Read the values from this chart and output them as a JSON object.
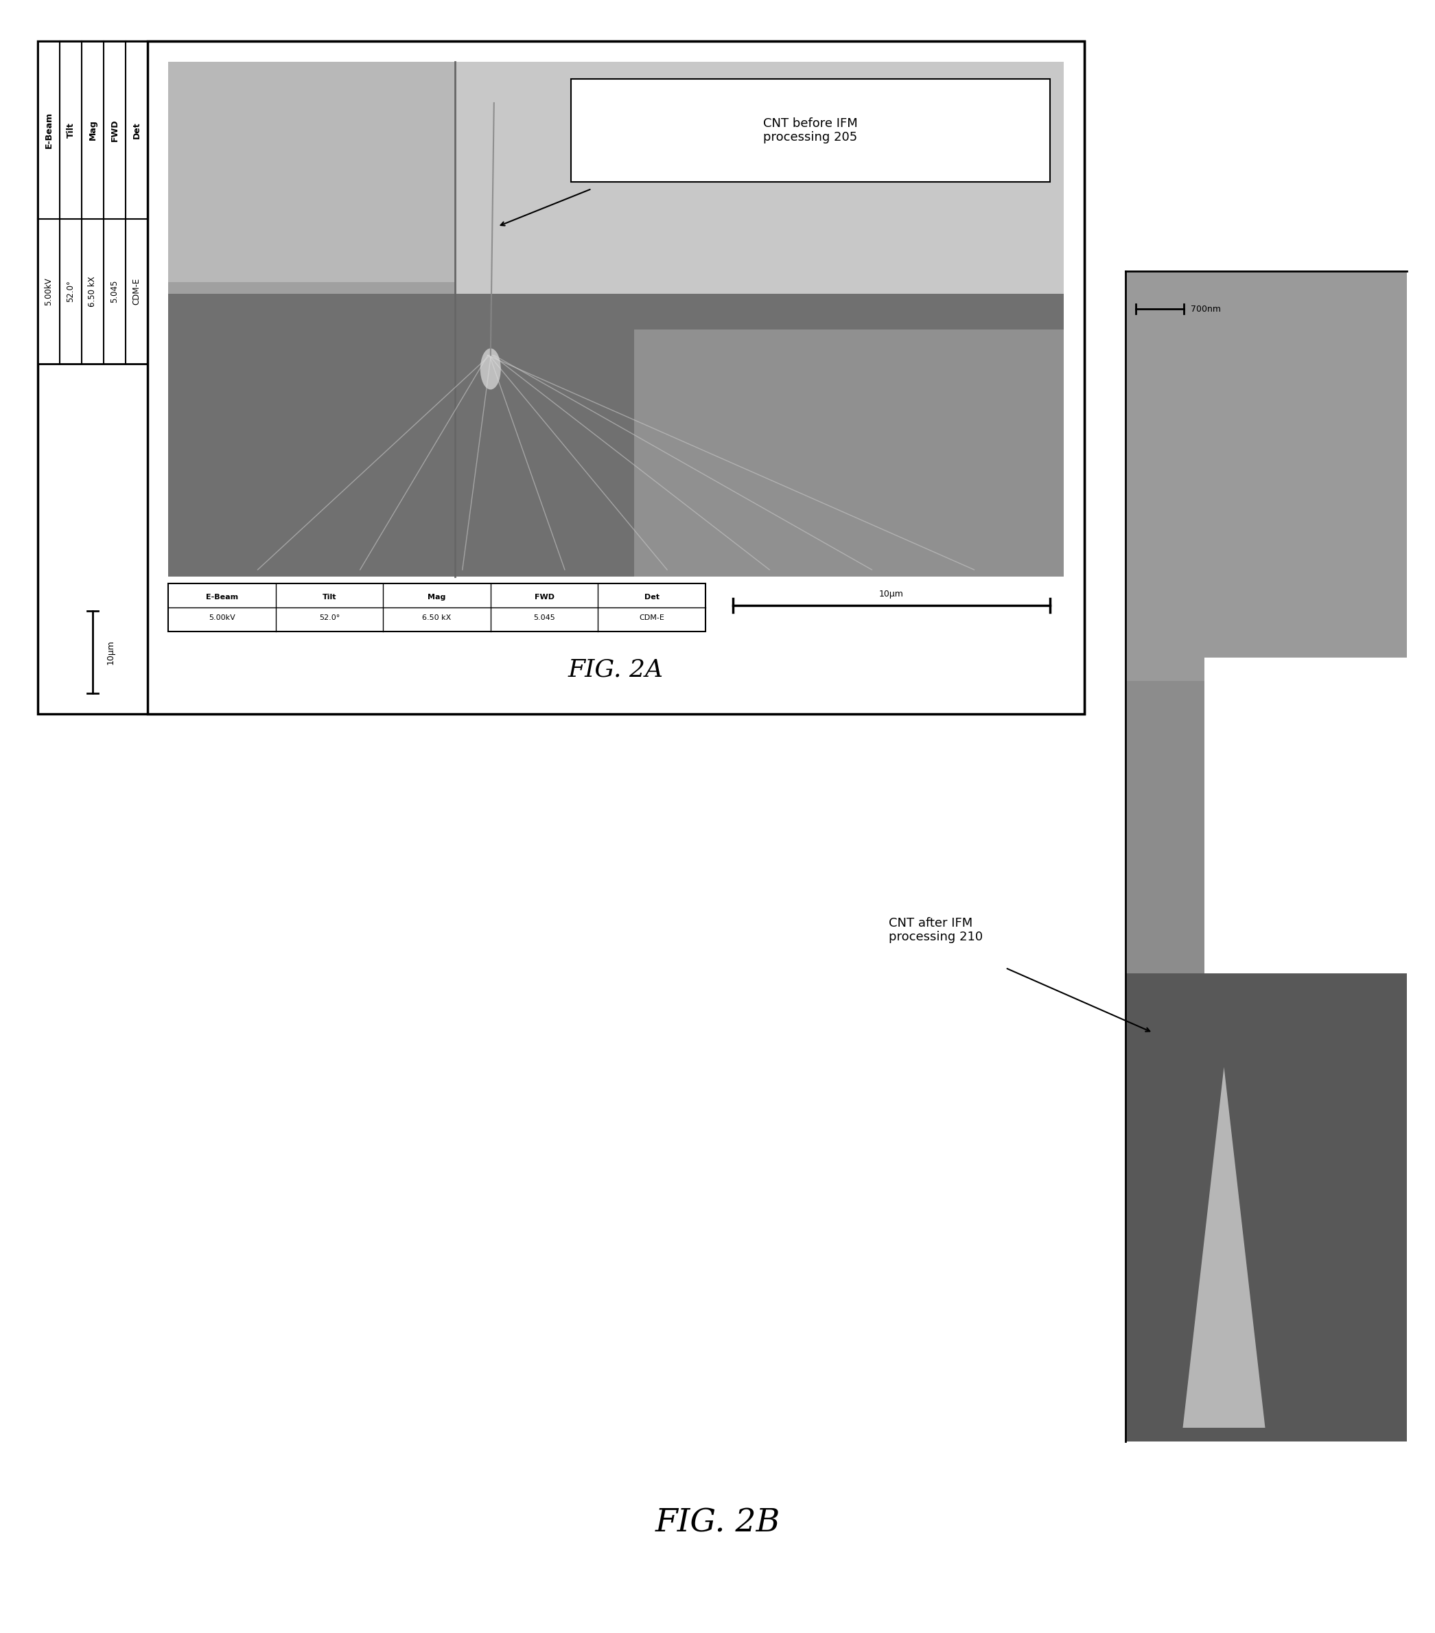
{
  "background_color": "#ffffff",
  "fig_width": 20.91,
  "fig_height": 23.79,
  "fig2a_title": "FIG. 2A",
  "fig2b_title": "FIG. 2B",
  "label_before": "CNT before IFM\nprocessing 205",
  "label_after": "CNT after IFM\nprocessing 210",
  "meta_labels": [
    "E-Beam",
    "Tilt",
    "Mag",
    "FWD",
    "Det"
  ],
  "meta_values": [
    "5.00kV",
    "52.0°",
    "6.50 kX",
    "5.045",
    "CDM-E"
  ],
  "scalebar_2a": "10μm",
  "scalebar_2b": "10μm",
  "scalebar_inset": "700nm",
  "sem_light": "#c8c8c8",
  "sem_mid": "#a0a0a0",
  "sem_dark": "#707070",
  "sem_darker": "#505050",
  "sem_white": "#e8e8e8",
  "right_sem_gray": "#8c8c8c",
  "right_sem_dark": "#585858"
}
